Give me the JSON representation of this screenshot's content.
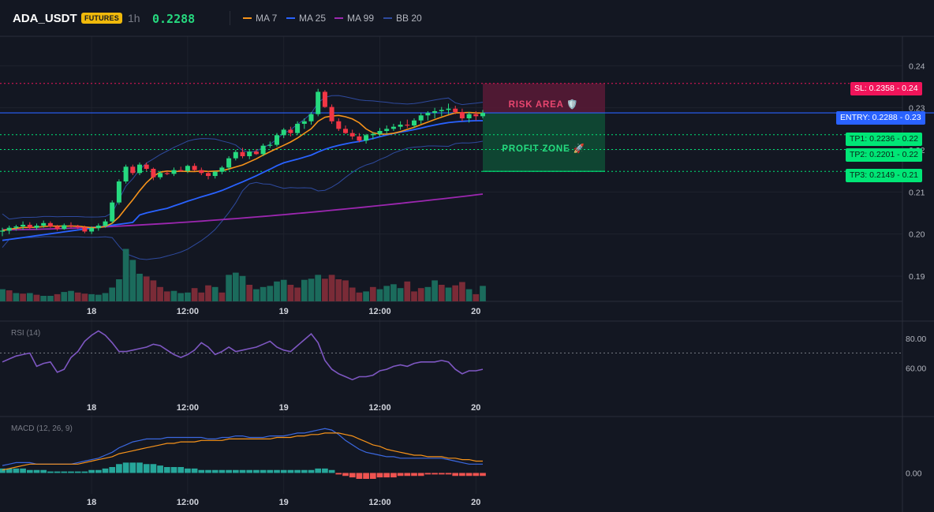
{
  "header": {
    "symbol": "ADA_USDT",
    "badge": "FUTURES",
    "interval": "1h",
    "price": "0.2288",
    "legend": [
      {
        "label": "MA 7",
        "color": "#f7931a"
      },
      {
        "label": "MA 25",
        "color": "#2962ff"
      },
      {
        "label": "MA 99",
        "color": "#9c27b0"
      },
      {
        "label": "BB 20",
        "color": "#2e4a9e"
      }
    ]
  },
  "colors": {
    "up": "#26d97f",
    "down": "#f23645",
    "volume_up": "#1b6b5c",
    "volume_down": "#7a2b37",
    "sl": "#f0145a",
    "entry": "#2962ff",
    "tp": "#00e676",
    "rsi": "#7e57c2",
    "macd": "#3b68e0",
    "signal": "#f7931a",
    "hist_up": "#26a69a",
    "hist_down": "#ef5350"
  },
  "zones": {
    "risk_label": "RISK AREA 🛡️",
    "profit_label": "PROFIT ZONE 🚀"
  },
  "levels": {
    "sl": {
      "label": "SL: 0.2358",
      "axis": "0.24",
      "value": 0.2358
    },
    "entry": {
      "label": "ENTRY: 0.2288",
      "axis": "0.23",
      "value": 0.2288
    },
    "tp1": {
      "label": "TP1: 0.2236",
      "axis": "0.22",
      "value": 0.2236
    },
    "tp2": {
      "label": "TP2: 0.2201",
      "axis": "0.22",
      "value": 0.2201
    },
    "tp3": {
      "label": "TP3: 0.2149",
      "axis": "0.21",
      "value": 0.2149
    }
  },
  "chart_data": [
    {
      "type": "candlestick",
      "ylim": [
        0.184,
        0.247
      ],
      "x_ticks": [
        "18",
        "12:00",
        "19",
        "12:00",
        "20"
      ],
      "y_ticks": [
        "0.24",
        "0.23",
        "0.22",
        "0.21",
        "0.20",
        "0.19"
      ],
      "y_tick_values": [
        0.24,
        0.23,
        0.22,
        0.21,
        0.2,
        0.19
      ],
      "candles": [
        [
          0.2007,
          0.2015,
          0.1995,
          0.2008
        ],
        [
          0.2008,
          0.202,
          0.2,
          0.2015
        ],
        [
          0.2015,
          0.2022,
          0.2008,
          0.2018
        ],
        [
          0.2018,
          0.203,
          0.201,
          0.2022
        ],
        [
          0.2022,
          0.2028,
          0.2012,
          0.2015
        ],
        [
          0.2015,
          0.2025,
          0.201,
          0.202
        ],
        [
          0.202,
          0.2032,
          0.2015,
          0.2026
        ],
        [
          0.2026,
          0.203,
          0.2015,
          0.2018
        ],
        [
          0.2018,
          0.2022,
          0.2008,
          0.2012
        ],
        [
          0.2012,
          0.2025,
          0.201,
          0.2021
        ],
        [
          0.2021,
          0.2028,
          0.2015,
          0.2019
        ],
        [
          0.2019,
          0.2022,
          0.2012,
          0.2016
        ],
        [
          0.2016,
          0.202,
          0.2002,
          0.2006
        ],
        [
          0.2006,
          0.2018,
          0.2,
          0.2014
        ],
        [
          0.2014,
          0.2025,
          0.2008,
          0.202
        ],
        [
          0.202,
          0.2035,
          0.2015,
          0.203
        ],
        [
          0.203,
          0.208,
          0.2025,
          0.2075
        ],
        [
          0.2075,
          0.213,
          0.207,
          0.2125
        ],
        [
          0.2125,
          0.2165,
          0.212,
          0.216
        ],
        [
          0.216,
          0.2165,
          0.214,
          0.2145
        ],
        [
          0.2145,
          0.217,
          0.214,
          0.2165
        ],
        [
          0.2165,
          0.217,
          0.215,
          0.2155
        ],
        [
          0.2155,
          0.2158,
          0.2128,
          0.2135
        ],
        [
          0.2135,
          0.215,
          0.213,
          0.2145
        ],
        [
          0.2145,
          0.215,
          0.214,
          0.2143
        ],
        [
          0.2143,
          0.2158,
          0.2138,
          0.2152
        ],
        [
          0.2152,
          0.216,
          0.2148,
          0.215
        ],
        [
          0.215,
          0.2165,
          0.2145,
          0.2162
        ],
        [
          0.2162,
          0.2168,
          0.215,
          0.2152
        ],
        [
          0.2152,
          0.2158,
          0.214,
          0.2145
        ],
        [
          0.2145,
          0.215,
          0.213,
          0.2138
        ],
        [
          0.2138,
          0.215,
          0.2132,
          0.2148
        ],
        [
          0.2148,
          0.2162,
          0.2142,
          0.2158
        ],
        [
          0.2158,
          0.2185,
          0.2152,
          0.218
        ],
        [
          0.218,
          0.22,
          0.2175,
          0.2195
        ],
        [
          0.2195,
          0.2205,
          0.218,
          0.2185
        ],
        [
          0.2185,
          0.22,
          0.2178,
          0.2196
        ],
        [
          0.2196,
          0.2202,
          0.2188,
          0.219
        ],
        [
          0.219,
          0.2215,
          0.2185,
          0.221
        ],
        [
          0.221,
          0.222,
          0.2205,
          0.2212
        ],
        [
          0.2212,
          0.224,
          0.2208,
          0.2235
        ],
        [
          0.2235,
          0.2252,
          0.2228,
          0.2248
        ],
        [
          0.2248,
          0.2255,
          0.2232,
          0.224
        ],
        [
          0.224,
          0.2268,
          0.2235,
          0.2262
        ],
        [
          0.2262,
          0.2275,
          0.225,
          0.2268
        ],
        [
          0.2268,
          0.229,
          0.226,
          0.2285
        ],
        [
          0.2285,
          0.2345,
          0.228,
          0.2338
        ],
        [
          0.2338,
          0.2342,
          0.23,
          0.2302
        ],
        [
          0.2302,
          0.2308,
          0.2262,
          0.2268
        ],
        [
          0.2268,
          0.2275,
          0.2245,
          0.225
        ],
        [
          0.225,
          0.2258,
          0.2238,
          0.224
        ],
        [
          0.224,
          0.2248,
          0.2225,
          0.2232
        ],
        [
          0.2232,
          0.224,
          0.2218,
          0.2222
        ],
        [
          0.2222,
          0.2238,
          0.2215,
          0.2235
        ],
        [
          0.2235,
          0.2242,
          0.2225,
          0.2238
        ],
        [
          0.2238,
          0.2252,
          0.2232,
          0.2245
        ],
        [
          0.2245,
          0.2258,
          0.2238,
          0.225
        ],
        [
          0.225,
          0.2262,
          0.2245,
          0.2255
        ],
        [
          0.2255,
          0.2268,
          0.2248,
          0.226
        ],
        [
          0.226,
          0.2272,
          0.2252,
          0.2258
        ],
        [
          0.2258,
          0.2275,
          0.2252,
          0.227
        ],
        [
          0.227,
          0.2288,
          0.2262,
          0.2282
        ],
        [
          0.2282,
          0.2292,
          0.227,
          0.2288
        ],
        [
          0.2288,
          0.23,
          0.2275,
          0.2292
        ],
        [
          0.2292,
          0.2302,
          0.228,
          0.2295
        ],
        [
          0.2295,
          0.231,
          0.2285,
          0.2298
        ],
        [
          0.2298,
          0.2305,
          0.2285,
          0.229
        ],
        [
          0.229,
          0.2298,
          0.2268,
          0.2275
        ],
        [
          0.2275,
          0.229,
          0.2265,
          0.2285
        ],
        [
          0.2285,
          0.2292,
          0.227,
          0.228
        ],
        [
          0.228,
          0.2295,
          0.2275,
          0.2288
        ]
      ],
      "volume": [
        [
          2.2,
          1
        ],
        [
          2.0,
          0
        ],
        [
          1.5,
          1
        ],
        [
          1.4,
          0
        ],
        [
          1.5,
          1
        ],
        [
          1.2,
          0
        ],
        [
          1.0,
          1
        ],
        [
          1.0,
          1
        ],
        [
          1.3,
          0
        ],
        [
          1.7,
          1
        ],
        [
          1.9,
          1
        ],
        [
          1.6,
          0
        ],
        [
          1.4,
          0
        ],
        [
          1.3,
          1
        ],
        [
          1.2,
          1
        ],
        [
          1.5,
          1
        ],
        [
          2.5,
          1
        ],
        [
          4.0,
          1
        ],
        [
          9.5,
          1
        ],
        [
          7.5,
          1
        ],
        [
          5.0,
          1
        ],
        [
          4.5,
          0
        ],
        [
          3.8,
          0
        ],
        [
          2.6,
          0
        ],
        [
          1.8,
          0
        ],
        [
          1.9,
          1
        ],
        [
          1.5,
          1
        ],
        [
          1.6,
          1
        ],
        [
          2.4,
          0
        ],
        [
          1.6,
          0
        ],
        [
          2.9,
          0
        ],
        [
          2.6,
          1
        ],
        [
          1.6,
          0
        ],
        [
          4.8,
          1
        ],
        [
          5.2,
          1
        ],
        [
          4.6,
          1
        ],
        [
          3.0,
          0
        ],
        [
          2.2,
          1
        ],
        [
          2.6,
          1
        ],
        [
          2.8,
          1
        ],
        [
          3.6,
          1
        ],
        [
          3.9,
          1
        ],
        [
          3.0,
          0
        ],
        [
          2.5,
          0
        ],
        [
          3.9,
          1
        ],
        [
          4.1,
          1
        ],
        [
          4.8,
          1
        ],
        [
          4.1,
          0
        ],
        [
          4.8,
          0
        ],
        [
          4.0,
          0
        ],
        [
          3.8,
          0
        ],
        [
          2.5,
          0
        ],
        [
          1.6,
          0
        ],
        [
          1.8,
          1
        ],
        [
          2.6,
          0
        ],
        [
          2.2,
          1
        ],
        [
          2.8,
          1
        ],
        [
          3.1,
          1
        ],
        [
          2.4,
          1
        ],
        [
          3.6,
          0
        ],
        [
          1.8,
          0
        ],
        [
          2.4,
          0
        ],
        [
          2.6,
          1
        ],
        [
          3.8,
          1
        ],
        [
          3.0,
          0
        ],
        [
          2.5,
          1
        ],
        [
          2.9,
          0
        ],
        [
          3.5,
          0
        ],
        [
          2.2,
          1
        ],
        [
          1.3,
          0
        ],
        [
          2.8,
          1
        ]
      ]
    },
    {
      "type": "line",
      "title": "RSI (14)",
      "ylim": [
        42,
        90
      ],
      "y_ticks": [
        "80.00",
        "60.00"
      ],
      "y_tick_values": [
        80,
        60
      ],
      "overbought": 70,
      "x_ticks": [
        "18",
        "12:00",
        "19",
        "12:00",
        "20"
      ],
      "values": [
        64,
        66,
        68,
        69,
        70,
        61,
        63,
        64,
        57,
        59,
        67,
        71,
        78,
        82,
        85,
        82,
        77,
        71,
        71,
        72,
        73,
        74,
        76,
        75,
        72,
        69,
        67,
        69,
        72,
        77,
        74,
        69,
        71,
        74,
        71,
        72,
        73,
        74,
        76,
        78,
        74,
        72,
        71,
        75,
        79,
        83,
        77,
        65,
        59,
        56,
        54,
        52,
        54,
        54,
        55,
        58,
        59,
        61,
        62,
        61,
        63,
        64,
        64,
        64,
        65,
        64,
        59,
        56,
        58,
        58,
        59
      ]
    },
    {
      "type": "line",
      "title": "MACD (12, 26, 9)",
      "ylim": [
        -0.0012,
        0.0036
      ],
      "y_ticks": [
        "0.00"
      ],
      "y_tick_values": [
        0
      ],
      "x_ticks": [
        "18",
        "12:00",
        "19",
        "12:00",
        "20"
      ],
      "macd": [
        0.0005,
        0.0006,
        0.0007,
        0.0007,
        0.0007,
        0.0006,
        0.0006,
        0.0006,
        0.0006,
        0.0006,
        0.0006,
        0.0007,
        0.0008,
        0.0009,
        0.001,
        0.0012,
        0.0014,
        0.0017,
        0.0019,
        0.0021,
        0.0022,
        0.0023,
        0.0023,
        0.0023,
        0.0024,
        0.0024,
        0.0024,
        0.0024,
        0.0024,
        0.0024,
        0.0023,
        0.0023,
        0.0024,
        0.0024,
        0.0025,
        0.0025,
        0.0024,
        0.0024,
        0.0024,
        0.0025,
        0.0025,
        0.0025,
        0.0026,
        0.0027,
        0.0027,
        0.0028,
        0.0029,
        0.003,
        0.0029,
        0.0026,
        0.0022,
        0.0019,
        0.0016,
        0.0014,
        0.0013,
        0.0012,
        0.0011,
        0.0011,
        0.001,
        0.001,
        0.001,
        0.001,
        0.001,
        0.001,
        0.001,
        0.0009,
        0.0008,
        0.0007,
        0.0006,
        0.0006,
        0.0006
      ],
      "signal": [
        0.0002,
        0.0003,
        0.0004,
        0.0005,
        0.0006,
        0.0006,
        0.0006,
        0.0006,
        0.0006,
        0.0006,
        0.0006,
        0.0006,
        0.0007,
        0.0008,
        0.0009,
        0.001,
        0.0011,
        0.0013,
        0.0014,
        0.0015,
        0.0016,
        0.0017,
        0.0018,
        0.0019,
        0.002,
        0.002,
        0.0021,
        0.0021,
        0.0021,
        0.0022,
        0.0022,
        0.0022,
        0.0022,
        0.0023,
        0.0023,
        0.0023,
        0.0023,
        0.0023,
        0.0023,
        0.0023,
        0.0024,
        0.0024,
        0.0024,
        0.0025,
        0.0025,
        0.0026,
        0.0026,
        0.0027,
        0.0027,
        0.0027,
        0.0026,
        0.0025,
        0.0023,
        0.0021,
        0.0019,
        0.0018,
        0.0016,
        0.0015,
        0.0014,
        0.0013,
        0.0012,
        0.0012,
        0.0011,
        0.0011,
        0.0011,
        0.001,
        0.001,
        0.0009,
        0.0009,
        0.0008,
        0.0008
      ],
      "histogram": [
        0.0003,
        0.0003,
        0.0003,
        0.0003,
        0.0002,
        0.0002,
        0.0002,
        0.0001,
        0.0001,
        0.0001,
        0.0001,
        0.0001,
        0.0001,
        0.0002,
        0.0002,
        0.0003,
        0.0004,
        0.0006,
        0.0007,
        0.0007,
        0.0007,
        0.0006,
        0.0006,
        0.0005,
        0.0004,
        0.0004,
        0.0004,
        0.0003,
        0.0003,
        0.0002,
        0.0002,
        0.0002,
        0.0002,
        0.0002,
        0.0002,
        0.0002,
        0.0002,
        0.0002,
        0.0002,
        0.0002,
        0.0002,
        0.0002,
        0.0002,
        0.0002,
        0.0002,
        0.0002,
        0.0003,
        0.0003,
        0.0002,
        -0.0001,
        -0.0002,
        -0.0003,
        -0.0004,
        -0.0004,
        -0.0004,
        -0.0003,
        -0.0003,
        -0.0003,
        -0.0002,
        -0.0002,
        -0.0002,
        -0.0002,
        -0.0001,
        -0.0001,
        -0.0001,
        -0.0001,
        -0.0002,
        -0.0002,
        -0.0002,
        -0.0002,
        -0.0002
      ]
    }
  ]
}
